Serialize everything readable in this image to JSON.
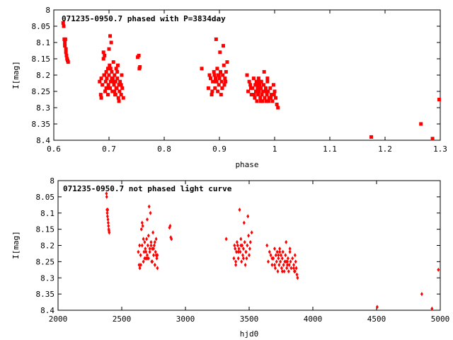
{
  "chart_data": [
    {
      "type": "scatter",
      "title": "071235-0950.7 phased with P=3834day",
      "xlabel": "phase",
      "ylabel": "I[mag]",
      "xlim": [
        0.6,
        1.3
      ],
      "ylim": [
        8.4,
        8.0
      ],
      "y_inverted": true,
      "xticks": [
        "0.6",
        "0.7",
        "0.8",
        "0.9",
        "1",
        "1.1",
        "1.2",
        "1.3"
      ],
      "yticks": [
        "8",
        "8.05",
        "8.1",
        "8.15",
        "8.2",
        "8.25",
        "8.3",
        "8.35",
        "8.4"
      ],
      "marker": "filled-square",
      "color": "#ff0000",
      "grid": false,
      "series": [
        {
          "x": [
            0.617,
            0.618,
            0.619,
            0.62,
            0.62,
            0.621,
            0.622,
            0.622,
            0.623,
            0.624,
            0.625,
            0.626,
            0.683,
            0.685,
            0.686,
            0.688,
            0.69,
            0.691,
            0.692,
            0.693,
            0.694,
            0.695,
            0.696,
            0.697,
            0.698,
            0.699,
            0.7,
            0.701,
            0.702,
            0.703,
            0.704,
            0.705,
            0.706,
            0.707,
            0.708,
            0.709,
            0.71,
            0.711,
            0.712,
            0.713,
            0.714,
            0.715,
            0.716,
            0.717,
            0.718,
            0.719,
            0.72,
            0.722,
            0.724,
            0.726,
            0.69,
            0.695,
            0.7,
            0.705,
            0.71,
            0.715,
            0.72,
            0.698,
            0.703,
            0.708,
            0.713,
            0.718,
            0.723,
            0.686,
            0.692,
            0.702,
            0.712,
            0.722,
            0.752,
            0.754,
            0.756,
            0.755,
            0.868,
            0.88,
            0.882,
            0.884,
            0.886,
            0.888,
            0.89,
            0.891,
            0.892,
            0.893,
            0.894,
            0.895,
            0.896,
            0.897,
            0.898,
            0.899,
            0.9,
            0.901,
            0.902,
            0.903,
            0.904,
            0.905,
            0.906,
            0.907,
            0.908,
            0.909,
            0.91,
            0.912,
            0.914,
            0.887,
            0.893,
            0.899,
            0.905,
            0.911,
            0.95,
            0.952,
            0.954,
            0.956,
            0.958,
            0.96,
            0.962,
            0.964,
            0.965,
            0.966,
            0.967,
            0.968,
            0.969,
            0.97,
            0.971,
            0.972,
            0.973,
            0.974,
            0.975,
            0.976,
            0.977,
            0.978,
            0.979,
            0.98,
            0.981,
            0.982,
            0.983,
            0.984,
            0.985,
            0.986,
            0.987,
            0.988,
            0.99,
            0.992,
            0.994,
            0.996,
            0.998,
            1.0,
            1.002,
            1.004,
            1.006,
            0.963,
            0.969,
            0.975,
            0.981,
            0.987,
            0.993,
            0.999,
            0.957,
            0.973,
            0.989,
            1.175,
            1.265,
            1.286,
            1.298
          ],
          "y": [
            8.04,
            8.05,
            8.09,
            8.1,
            8.11,
            8.09,
            8.12,
            8.13,
            8.14,
            8.15,
            8.155,
            8.16,
            8.22,
            8.26,
            8.27,
            8.23,
            8.15,
            8.2,
            8.14,
            8.25,
            8.22,
            8.19,
            8.21,
            8.24,
            8.18,
            8.23,
            8.2,
            8.17,
            8.08,
            8.22,
            8.1,
            8.19,
            8.25,
            8.21,
            8.16,
            8.23,
            8.2,
            8.26,
            8.22,
            8.18,
            8.24,
            8.21,
            8.17,
            8.27,
            8.23,
            8.25,
            8.22,
            8.26,
            8.24,
            8.27,
            8.13,
            8.24,
            8.12,
            8.21,
            8.25,
            8.19,
            8.23,
            8.26,
            8.18,
            8.22,
            8.24,
            8.28,
            8.2,
            8.21,
            8.2,
            8.24,
            8.26,
            8.23,
            8.145,
            8.14,
            8.175,
            8.18,
            8.18,
            8.24,
            8.2,
            8.21,
            8.26,
            8.22,
            8.19,
            8.2,
            8.24,
            8.21,
            8.09,
            8.22,
            8.18,
            8.25,
            8.2,
            8.23,
            8.21,
            8.13,
            8.19,
            8.26,
            8.22,
            8.24,
            8.2,
            8.11,
            8.17,
            8.23,
            8.21,
            8.19,
            8.16,
            8.25,
            8.22,
            8.2,
            8.24,
            8.22,
            8.2,
            8.25,
            8.22,
            8.23,
            8.26,
            8.24,
            8.21,
            8.27,
            8.23,
            8.25,
            8.22,
            8.28,
            8.24,
            8.26,
            8.21,
            8.25,
            8.23,
            8.27,
            8.24,
            8.22,
            8.26,
            8.28,
            8.25,
            8.23,
            8.19,
            8.27,
            8.25,
            8.24,
            8.28,
            8.26,
            8.22,
            8.25,
            8.27,
            8.24,
            8.26,
            8.28,
            8.23,
            8.25,
            8.27,
            8.29,
            8.3,
            8.26,
            8.23,
            8.28,
            8.25,
            8.21,
            8.27,
            8.26,
            8.24,
            8.22,
            8.28,
            8.39,
            8.35,
            8.395,
            8.275
          ]
        }
      ]
    },
    {
      "type": "scatter",
      "title": "071235-0950.7 not phased light curve",
      "xlabel": "hjd0",
      "ylabel": "I[mag]",
      "xlim": [
        2000,
        5000
      ],
      "ylim": [
        8.4,
        8.0
      ],
      "y_inverted": true,
      "xticks": [
        "2000",
        "2500",
        "3000",
        "3500",
        "4000",
        "4500",
        "5000"
      ],
      "yticks": [
        "8",
        "8.05",
        "8.1",
        "8.15",
        "8.2",
        "8.25",
        "8.3",
        "8.35",
        "8.4"
      ],
      "marker": "filled-diamond",
      "color": "#ff0000",
      "grid": false,
      "series": [
        {
          "x": [
            2380,
            2382,
            2384,
            2386,
            2388,
            2390,
            2392,
            2394,
            2396,
            2398,
            2400,
            2402,
            2630,
            2636,
            2642,
            2648,
            2654,
            2660,
            2665,
            2670,
            2675,
            2680,
            2685,
            2690,
            2695,
            2700,
            2705,
            2710,
            2715,
            2720,
            2725,
            2730,
            2735,
            2740,
            2745,
            2750,
            2755,
            2760,
            2765,
            2770,
            2775,
            2780,
            2660,
            2680,
            2700,
            2720,
            2740,
            2760,
            2780,
            2650,
            2670,
            2690,
            2710,
            2730,
            2750,
            2770,
            2640,
            2700,
            2760,
            2875,
            2880,
            2885,
            2890,
            3320,
            3380,
            3385,
            3390,
            3395,
            3400,
            3405,
            3410,
            3415,
            3420,
            3425,
            3430,
            3435,
            3440,
            3445,
            3450,
            3455,
            3460,
            3465,
            3470,
            3475,
            3480,
            3485,
            3490,
            3495,
            3500,
            3505,
            3510,
            3520,
            3395,
            3415,
            3435,
            3455,
            3475,
            3640,
            3650,
            3660,
            3670,
            3680,
            3690,
            3700,
            3705,
            3710,
            3715,
            3720,
            3725,
            3730,
            3735,
            3740,
            3745,
            3750,
            3755,
            3760,
            3765,
            3770,
            3775,
            3780,
            3785,
            3790,
            3795,
            3800,
            3805,
            3810,
            3815,
            3820,
            3825,
            3830,
            3840,
            3850,
            3855,
            3860,
            3865,
            3870,
            3875,
            3880,
            3700,
            3730,
            3760,
            3790,
            3820,
            3850,
            3680,
            3740,
            3800,
            3860,
            4505,
            4855,
            4935,
            4985
          ],
          "y": [
            8.04,
            8.05,
            8.09,
            8.1,
            8.11,
            8.09,
            8.12,
            8.13,
            8.14,
            8.15,
            8.155,
            8.16,
            8.22,
            8.26,
            8.27,
            8.23,
            8.15,
            8.2,
            8.14,
            8.25,
            8.22,
            8.19,
            8.21,
            8.24,
            8.18,
            8.23,
            8.2,
            8.17,
            8.08,
            8.22,
            8.1,
            8.19,
            8.25,
            8.21,
            8.16,
            8.23,
            8.2,
            8.26,
            8.22,
            8.18,
            8.24,
            8.27,
            8.13,
            8.24,
            8.12,
            8.21,
            8.25,
            8.19,
            8.23,
            8.26,
            8.18,
            8.22,
            8.24,
            8.2,
            8.21,
            8.23,
            8.2,
            8.24,
            8.26,
            8.145,
            8.14,
            8.175,
            8.18,
            8.18,
            8.24,
            8.2,
            8.21,
            8.26,
            8.22,
            8.19,
            8.2,
            8.24,
            8.21,
            8.09,
            8.22,
            8.18,
            8.25,
            8.2,
            8.23,
            8.21,
            8.13,
            8.19,
            8.26,
            8.22,
            8.24,
            8.2,
            8.11,
            8.17,
            8.23,
            8.21,
            8.19,
            8.16,
            8.25,
            8.22,
            8.2,
            8.24,
            8.22,
            8.2,
            8.25,
            8.22,
            8.23,
            8.26,
            8.24,
            8.21,
            8.27,
            8.23,
            8.25,
            8.22,
            8.28,
            8.24,
            8.26,
            8.21,
            8.25,
            8.23,
            8.27,
            8.24,
            8.22,
            8.26,
            8.28,
            8.25,
            8.23,
            8.19,
            8.27,
            8.25,
            8.24,
            8.28,
            8.26,
            8.22,
            8.25,
            8.27,
            8.24,
            8.26,
            8.28,
            8.23,
            8.25,
            8.27,
            8.29,
            8.3,
            8.26,
            8.23,
            8.28,
            8.25,
            8.21,
            8.27,
            8.24,
            8.22,
            8.26,
            8.28,
            8.39,
            8.35,
            8.395,
            8.275
          ]
        }
      ]
    }
  ]
}
